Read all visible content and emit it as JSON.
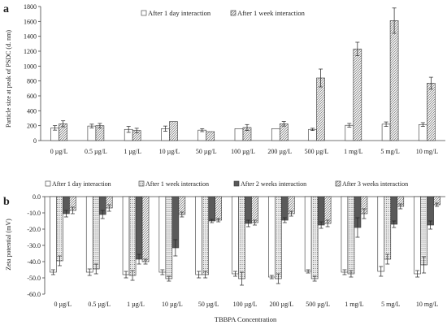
{
  "chart_data": [
    {
      "type": "bar",
      "panel_label": "a",
      "ylabel": "Particle size at peak of PSDC (d. nm)",
      "ylim": [
        0,
        1800
      ],
      "yticks": [
        0,
        200,
        400,
        600,
        800,
        1000,
        1200,
        1400,
        1600,
        1800
      ],
      "grid": false,
      "legend_position": "top",
      "categories": [
        "0 µg/L",
        "0.5 µg/L",
        "1 µg/L",
        "10 µg/L",
        "50 µg/L",
        "100 µg/L",
        "200 µg/L",
        "500 µg/L",
        "1 mg/L",
        "5 mg/L",
        "10 mg/L"
      ],
      "series": [
        {
          "name": "After 1 day interaction",
          "pattern": "white",
          "values": [
            170,
            195,
            150,
            160,
            140,
            160,
            160,
            150,
            205,
            220,
            215
          ],
          "errors": [
            30,
            25,
            40,
            35,
            20,
            0,
            0,
            15,
            25,
            30,
            25
          ]
        },
        {
          "name": "After 1 week interaction",
          "pattern": "hatch",
          "values": [
            225,
            200,
            135,
            255,
            120,
            175,
            225,
            840,
            1230,
            1610,
            770
          ],
          "errors": [
            40,
            30,
            30,
            0,
            0,
            40,
            30,
            120,
            90,
            170,
            80
          ]
        }
      ]
    },
    {
      "type": "bar",
      "panel_label": "b",
      "ylabel": "Zeta potential (mV)",
      "xlabel": "TBBPA Concentration",
      "ylim": [
        -60,
        0
      ],
      "yticks": [
        "0.0",
        "-10.0",
        "-20.0",
        "-30.0",
        "-40.0",
        "-50.0",
        "-60.0"
      ],
      "ytick_values": [
        0,
        -10,
        -20,
        -30,
        -40,
        -50,
        -60
      ],
      "grid": false,
      "legend_position": "top",
      "categories": [
        "0 µg/L",
        "0.5 µg/L",
        "1 µg/L",
        "10 µg/L",
        "50 µg/L",
        "100 µg/L",
        "200 µg/L",
        "500 µg/L",
        "1 mg/L",
        "5 mg/L",
        "10 mg/L"
      ],
      "series": [
        {
          "name": "After 1 day interaction",
          "pattern": "white",
          "values": [
            -46.5,
            -46.5,
            -48,
            -46.5,
            -48,
            -47.5,
            -49.5,
            -46,
            -46.5,
            -46,
            -47.5
          ],
          "errors": [
            1.5,
            2,
            2,
            1.5,
            2,
            1.5,
            1,
            1,
            1.5,
            3,
            2
          ]
        },
        {
          "name": "After 1 week interaction",
          "pattern": "dots",
          "values": [
            -39.5,
            -44.5,
            -48.5,
            -50.5,
            -48,
            -50.5,
            -50.5,
            -50.5,
            -47.5,
            -38.5,
            -42
          ],
          "errors": [
            3,
            3,
            3,
            1.5,
            2,
            4,
            3,
            1.5,
            2,
            3,
            5
          ]
        },
        {
          "name": "After 2 weeks interaction",
          "pattern": "dark",
          "values": [
            -10.5,
            -11,
            -38.5,
            -31.5,
            -15,
            -16.5,
            -14.5,
            -17.5,
            -19,
            -17,
            -17.5
          ],
          "errors": [
            2,
            2.5,
            3,
            5,
            1,
            2,
            1.5,
            2,
            6,
            2,
            2.5
          ]
        },
        {
          "name": "After 3 weeks interaction",
          "pattern": "hatch",
          "values": [
            -8.5,
            -7,
            -40,
            -11,
            -14.5,
            -16,
            -10.5,
            -16.5,
            -10.5,
            -6,
            -5
          ],
          "errors": [
            2,
            2,
            1.5,
            1.5,
            1,
            1.5,
            1.5,
            2,
            3,
            1.5,
            1
          ]
        }
      ]
    }
  ]
}
